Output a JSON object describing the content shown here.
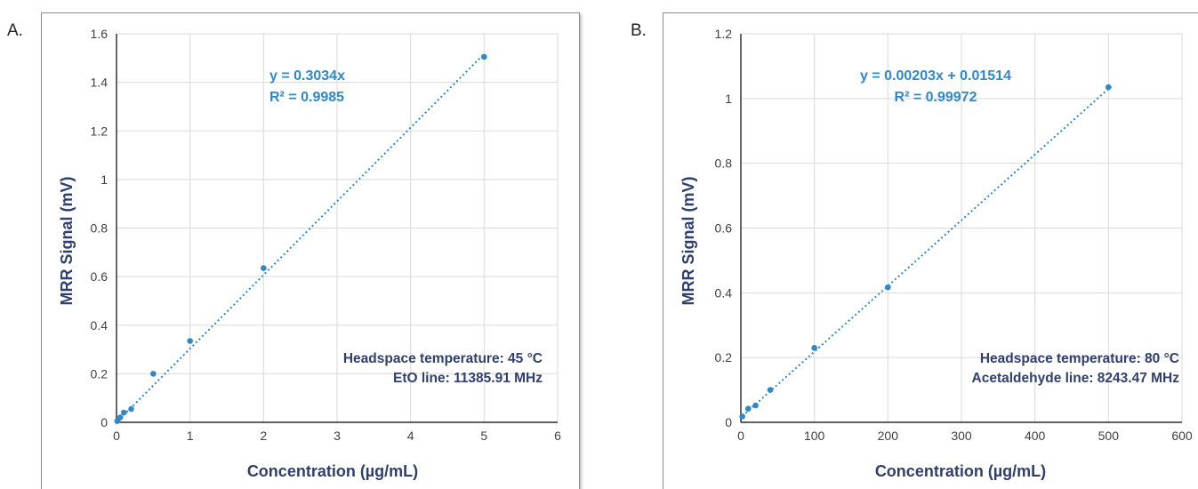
{
  "colors": {
    "series": "#2e88c9",
    "annotation": "#2e88c9",
    "axis_title": "#2f3f6e",
    "grid": "#d9d9d9"
  },
  "chart_data": [
    {
      "panel_label": "A.",
      "type": "scatter",
      "xlabel": "Concentration (µg/mL)",
      "ylabel": "MRR Signal (mV)",
      "xlim": [
        0,
        6
      ],
      "ylim": [
        0,
        1.6
      ],
      "xticks": [
        "0",
        "1",
        "2",
        "3",
        "4",
        "5",
        "6"
      ],
      "yticks": [
        "0",
        "0.2",
        "0.4",
        "0.6",
        "0.8",
        "1",
        "1.2",
        "1.4",
        "1.6"
      ],
      "grid": true,
      "points": [
        [
          0.01,
          0.005
        ],
        [
          0.05,
          0.02
        ],
        [
          0.1,
          0.04
        ],
        [
          0.2,
          0.055
        ],
        [
          0.5,
          0.2
        ],
        [
          1,
          0.335
        ],
        [
          2,
          0.635
        ],
        [
          5,
          1.505
        ]
      ],
      "trendline": {
        "style": "dotted",
        "slope": 0.3034,
        "intercept": 0
      },
      "equation": [
        "y = 0.3034x",
        "R² = 0.9985"
      ],
      "notes": [
        "Headspace temperature: 45 °C",
        "EtO line: 11385.91 MHz"
      ]
    },
    {
      "panel_label": "B.",
      "type": "scatter",
      "xlabel": "Concentration (µg/mL)",
      "ylabel": "MRR Signal (mV)",
      "xlim": [
        0,
        600
      ],
      "ylim": [
        0,
        1.2
      ],
      "xticks": [
        "0",
        "100",
        "200",
        "300",
        "400",
        "500",
        "600"
      ],
      "yticks": [
        "0",
        "0.2",
        "0.4",
        "0.6",
        "0.8",
        "1",
        "1.2"
      ],
      "grid": true,
      "points": [
        [
          2,
          0.018
        ],
        [
          10,
          0.042
        ],
        [
          20,
          0.052
        ],
        [
          40,
          0.1
        ],
        [
          100,
          0.23
        ],
        [
          200,
          0.417
        ],
        [
          500,
          1.035
        ]
      ],
      "trendline": {
        "style": "dotted",
        "slope": 0.00203,
        "intercept": 0.01514
      },
      "equation": [
        "y = 0.00203x + 0.01514",
        "R² = 0.99972"
      ],
      "notes": [
        "Headspace temperature: 80 °C",
        "Acetaldehyde line: 8243.47 MHz"
      ]
    }
  ]
}
